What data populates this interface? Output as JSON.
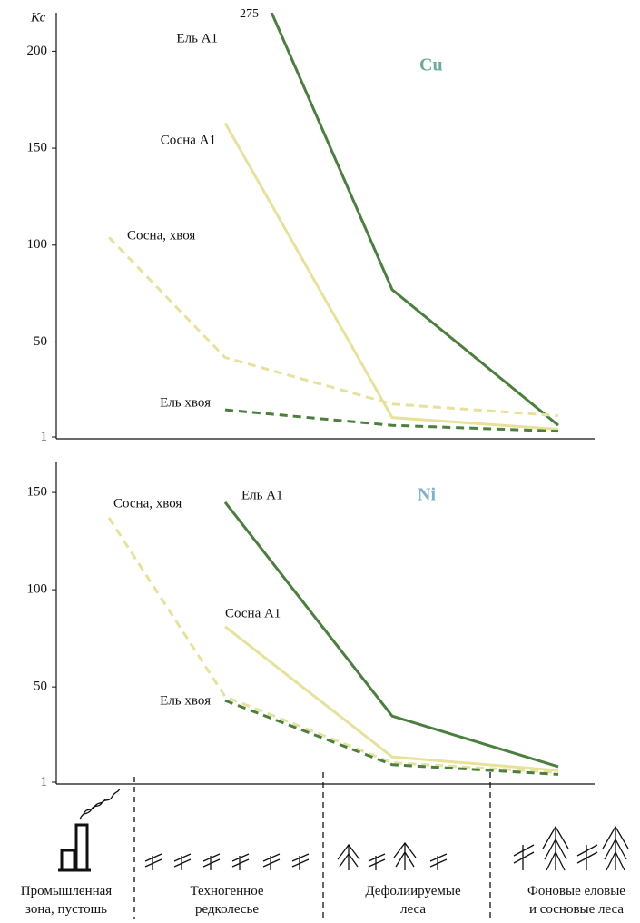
{
  "chart_data": [
    {
      "type": "line",
      "title": "Cu",
      "title_color": "#6aab99",
      "y_label": "Кс",
      "ylim": [
        1,
        218
      ],
      "yticks": [
        1,
        50,
        100,
        150,
        200
      ],
      "series": [
        {
          "name": "Ель А1",
          "color": "#4b7f3e",
          "dashed": false,
          "values": [
            null,
            275,
            77,
            7
          ]
        },
        {
          "name": "Сосна А1",
          "color": "#e6e29c",
          "dashed": false,
          "values": [
            null,
            163,
            11,
            5
          ]
        },
        {
          "name": "Сосна, хвоя",
          "color": "#e6e29c",
          "dashed": true,
          "values": [
            104,
            42,
            18,
            12
          ]
        },
        {
          "name": "Ель хвоя",
          "color": "#4b7f3e",
          "dashed": true,
          "values": [
            null,
            15,
            7,
            4
          ]
        }
      ]
    },
    {
      "type": "line",
      "title": "Ni",
      "title_color": "#7cb0d0",
      "ylim": [
        1,
        165
      ],
      "yticks": [
        1,
        50,
        100,
        150
      ],
      "categories": [
        "Промышленная\nзона, пустошь",
        "Техногенное\nредколесье",
        "Дефолиируемые\nлеса",
        "Фоновые еловые\nи сосновые леса"
      ],
      "series": [
        {
          "name": "Ель А1",
          "color": "#4b7f3e",
          "dashed": false,
          "values": [
            null,
            145,
            35,
            9
          ]
        },
        {
          "name": "Сосна А1",
          "color": "#e6e29c",
          "dashed": false,
          "values": [
            null,
            81,
            14,
            7
          ]
        },
        {
          "name": "Сосна, хвоя",
          "color": "#e6e29c",
          "dashed": true,
          "values": [
            137,
            45,
            11,
            6
          ]
        },
        {
          "name": "Ель хвоя",
          "color": "#4b7f3e",
          "dashed": true,
          "values": [
            null,
            43,
            10,
            5
          ]
        }
      ]
    }
  ]
}
